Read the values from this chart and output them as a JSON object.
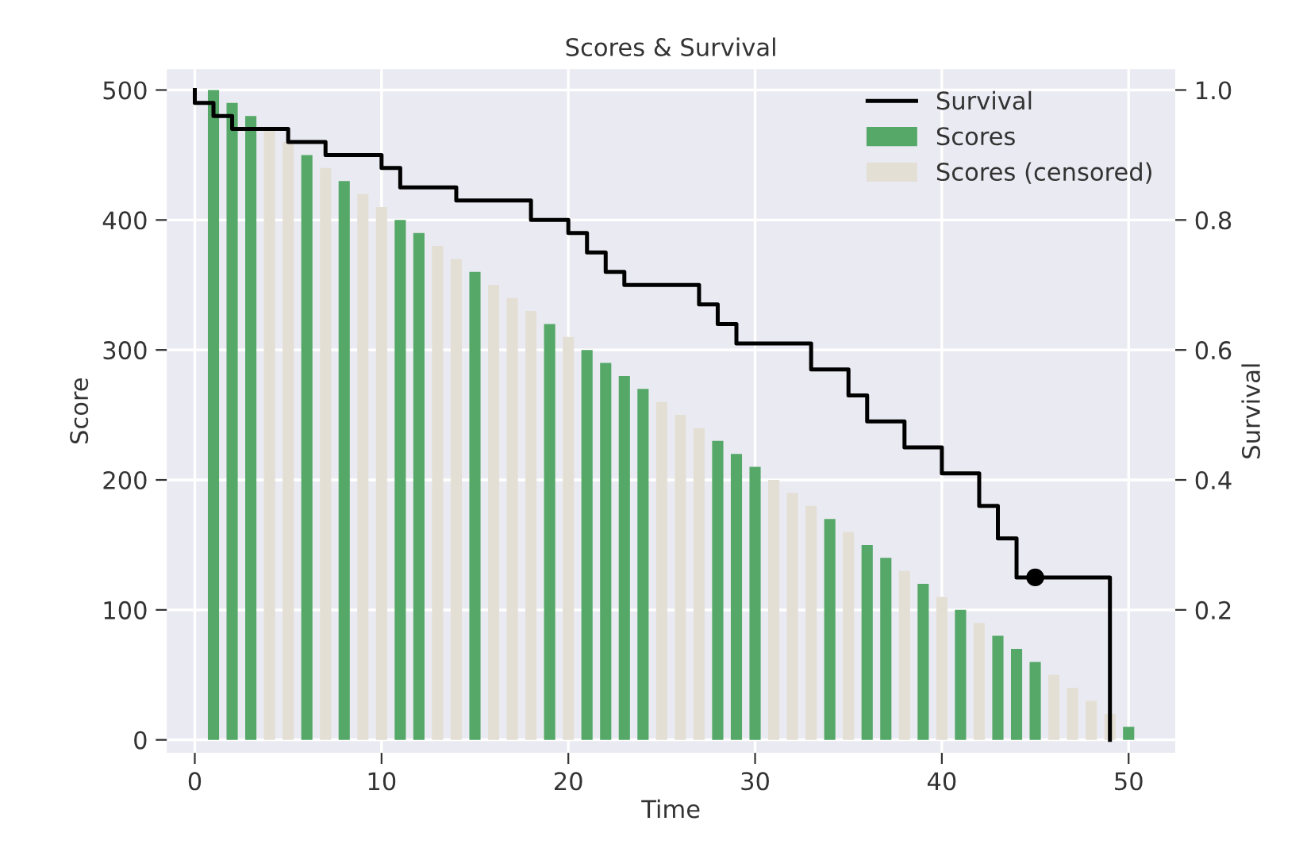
{
  "chart_data": {
    "type": "bar",
    "title": "Scores & Survival",
    "xlabel": "Time",
    "ylabel": "Score",
    "y2label": "Survival",
    "x": [
      1,
      2,
      3,
      4,
      5,
      6,
      7,
      8,
      9,
      10,
      11,
      12,
      13,
      14,
      15,
      16,
      17,
      18,
      19,
      20,
      21,
      22,
      23,
      24,
      25,
      26,
      27,
      28,
      29,
      30,
      31,
      32,
      33,
      34,
      35,
      36,
      37,
      38,
      39,
      40,
      41,
      42,
      43,
      44,
      45,
      46,
      47,
      48,
      49,
      50
    ],
    "series": [
      {
        "name": "Survival",
        "type": "step",
        "axis": "y2",
        "color": "#000000",
        "x": [
          0,
          0,
          1,
          2,
          5,
          7,
          10,
          11,
          14,
          18,
          20,
          21,
          22,
          23,
          27,
          28,
          29,
          33,
          35,
          36,
          38,
          40,
          42,
          43,
          44,
          49
        ],
        "values": [
          1.0,
          0.98,
          0.96,
          0.94,
          0.92,
          0.9,
          0.88,
          0.85,
          0.83,
          0.8,
          0.78,
          0.75,
          0.72,
          0.7,
          0.67,
          0.64,
          0.61,
          0.57,
          0.53,
          0.49,
          0.45,
          0.41,
          0.36,
          0.31,
          0.25,
          0
        ]
      },
      {
        "name": "Scores",
        "color": "#55a868",
        "values": [
          500,
          490,
          480,
          null,
          null,
          450,
          null,
          430,
          null,
          null,
          400,
          390,
          null,
          null,
          360,
          null,
          null,
          null,
          320,
          null,
          300,
          290,
          280,
          270,
          null,
          null,
          null,
          230,
          220,
          210,
          null,
          null,
          null,
          170,
          null,
          150,
          140,
          null,
          120,
          null,
          100,
          null,
          80,
          70,
          60,
          null,
          null,
          null,
          null,
          10
        ]
      },
      {
        "name": "Scores (censored)",
        "color": "#e4dfd5",
        "values": [
          null,
          null,
          null,
          470,
          460,
          null,
          440,
          null,
          420,
          410,
          null,
          null,
          380,
          370,
          null,
          350,
          340,
          330,
          null,
          310,
          null,
          null,
          null,
          null,
          260,
          250,
          240,
          null,
          null,
          null,
          200,
          190,
          180,
          null,
          160,
          null,
          null,
          130,
          null,
          110,
          null,
          90,
          null,
          null,
          null,
          50,
          40,
          30,
          20,
          null
        ]
      },
      {
        "type": "scatter",
        "axis": "y2",
        "color": "#000000",
        "marker": "circle",
        "x": [
          45
        ],
        "values": [
          0.25
        ]
      }
    ],
    "xlim": [
      -1.5,
      52.5
    ],
    "xticks": [
      0,
      10,
      20,
      30,
      40,
      50
    ],
    "ylim": [
      -10,
      516
    ],
    "yticks": [
      0,
      100,
      200,
      300,
      400,
      500
    ],
    "y2lim": [
      -0.02,
      1.032
    ],
    "y2ticks": [
      {
        "value": 0.2,
        "label": "0.2"
      },
      {
        "value": 0.4,
        "label": "0.4"
      },
      {
        "value": 0.6,
        "label": "0.6"
      },
      {
        "value": 0.8,
        "label": "0.8"
      },
      {
        "value": 1.0,
        "label": "1.0"
      }
    ],
    "grid": true,
    "legend": "top right"
  }
}
